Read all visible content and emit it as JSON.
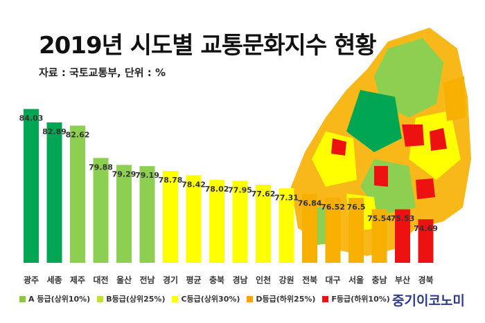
{
  "header": {
    "title": "2019년 시도별 교통문화지수 현황",
    "source": "자료 : 국토교통부, 단위 : %"
  },
  "legend": [
    {
      "label": "A 등급(상위10%)",
      "color": "#8dc63f"
    },
    {
      "label": "B등급(상위25%)",
      "color": "#c8e02a"
    },
    {
      "label": "C등급(상위30%)",
      "color": "#ffff00"
    },
    {
      "label": "D등급(하위25%)",
      "color": "#f7a500"
    },
    {
      "label": "F등급(하위10%)",
      "color": "#ee1111"
    }
  ],
  "brand": "중기이코노미",
  "chart_data": {
    "type": "bar",
    "title": "2019년 시도별 교통문화지수 현황",
    "subtitle": "자료 : 국토교통부, 단위 : %",
    "xlabel": "",
    "ylabel": "",
    "categories": [
      "광주",
      "세종",
      "제주",
      "대전",
      "울산",
      "전남",
      "경기",
      "평균",
      "충북",
      "경남",
      "인천",
      "강원",
      "전북",
      "대구",
      "서울",
      "충남",
      "부산",
      "경북"
    ],
    "values": [
      84.03,
      82.89,
      82.62,
      79.88,
      79.29,
      79.19,
      78.78,
      78.42,
      78.02,
      77.95,
      77.62,
      77.31,
      76.84,
      76.52,
      76.5,
      75.54,
      75.53,
      74.69
    ],
    "value_labels": [
      "84.03",
      "82.89",
      "82.62",
      "79.88",
      "79.29",
      "79.19",
      "78.78",
      "78.42",
      "78.02",
      "77.95",
      "77.62",
      "77.31",
      "76.84",
      "76.52",
      "76.5",
      "75.54",
      "75.53",
      "74.69"
    ],
    "bar_colors": [
      "#00a651",
      "#00a651",
      "#8dcf50",
      "#8dcf50",
      "#8dcf50",
      "#8dcf50",
      "#ffff00",
      "#ffff00",
      "#ffff00",
      "#ffff00",
      "#ffff00",
      "#ffff00",
      "#f7b000",
      "#f7b000",
      "#f7b000",
      "#f7b000",
      "#ee1111",
      "#ee1111"
    ],
    "ylim": [
      71,
      85
    ],
    "grid": false,
    "legend_position": "bottom"
  }
}
